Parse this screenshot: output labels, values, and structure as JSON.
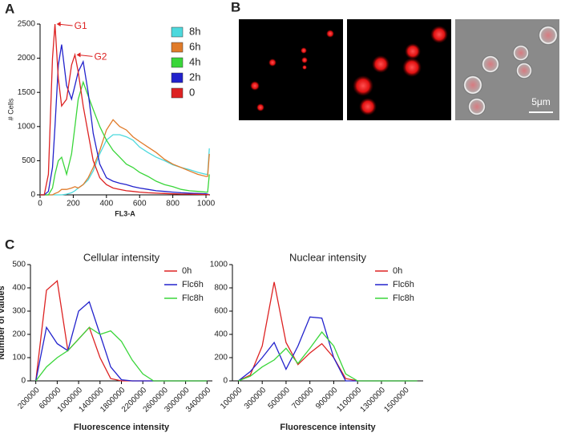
{
  "panel_labels": [
    "A",
    "B",
    "C"
  ],
  "scale_bar": "5μm",
  "chart_data": [
    {
      "type": "line",
      "xlabel": "FL3-A",
      "ylabel": "# Cells",
      "x": [
        0,
        25,
        50,
        75,
        90,
        110,
        130,
        160,
        190,
        210,
        230,
        260,
        290,
        320,
        360,
        400,
        440,
        480,
        520,
        560,
        600,
        650,
        700,
        750,
        800,
        850,
        900,
        950,
        1000,
        1010,
        1020
      ],
      "series": [
        {
          "name": "8h",
          "color": "#4dd9dd",
          "values": [
            0,
            0,
            0,
            0,
            0,
            0,
            0,
            10,
            30,
            60,
            100,
            150,
            220,
            350,
            600,
            800,
            880,
            880,
            850,
            800,
            700,
            620,
            550,
            500,
            440,
            400,
            370,
            330,
            300,
            300,
            680
          ]
        },
        {
          "name": "6h",
          "color": "#e07b2a",
          "values": [
            0,
            0,
            0,
            0,
            20,
            40,
            80,
            80,
            100,
            120,
            100,
            150,
            250,
            400,
            650,
            950,
            1100,
            1000,
            950,
            850,
            780,
            700,
            620,
            520,
            450,
            400,
            350,
            300,
            270,
            270,
            600
          ]
        },
        {
          "name": "4h",
          "color": "#3ad63a",
          "values": [
            0,
            0,
            0,
            100,
            300,
            500,
            550,
            300,
            600,
            1000,
            1400,
            1650,
            1450,
            1250,
            1000,
            800,
            650,
            550,
            450,
            400,
            330,
            270,
            200,
            150,
            120,
            80,
            60,
            50,
            40,
            40,
            300
          ]
        },
        {
          "name": "2h",
          "color": "#2222cc",
          "values": [
            0,
            0,
            50,
            400,
            1000,
            1900,
            2200,
            1600,
            1400,
            1600,
            1800,
            1950,
            1500,
            900,
            450,
            250,
            200,
            170,
            150,
            120,
            100,
            80,
            60,
            50,
            40,
            30,
            25,
            20,
            15,
            10,
            0
          ]
        },
        {
          "name": "0",
          "color": "#dd2222",
          "values": [
            0,
            0,
            300,
            2000,
            2500,
            1700,
            1300,
            1400,
            1900,
            2050,
            1800,
            1300,
            900,
            500,
            250,
            150,
            100,
            80,
            60,
            50,
            40,
            30,
            25,
            20,
            15,
            12,
            10,
            8,
            5,
            5,
            0
          ]
        }
      ],
      "annotations": [
        {
          "text": "G1",
          "x": 90,
          "y": 2500
        },
        {
          "text": "G2",
          "x": 210,
          "y": 2050
        }
      ],
      "xlim": [
        0,
        1024
      ],
      "xticks": [
        0,
        200,
        400,
        600,
        800,
        1000
      ],
      "ylim": [
        0,
        2500
      ],
      "yticks": [
        0,
        500,
        1000,
        1500,
        2000,
        2500
      ],
      "legend": "upper right"
    },
    {
      "type": "line",
      "title": "Cellular intensity",
      "xlabel": "Fluorescence intensity",
      "ylabel": "Number of values",
      "x": [
        200000,
        400000,
        600000,
        800000,
        1000000,
        1200000,
        1400000,
        1600000,
        1800000,
        2000000,
        2200000,
        2400000,
        2600000,
        2800000,
        3000000,
        3200000,
        3400000
      ],
      "series": [
        {
          "name": "0h",
          "color": "#dd2222",
          "values": [
            0,
            390,
            430,
            130,
            180,
            230,
            100,
            10,
            0,
            0,
            0,
            0,
            0,
            0,
            0,
            0,
            0
          ]
        },
        {
          "name": "Flc6h",
          "color": "#2222cc",
          "values": [
            0,
            230,
            160,
            130,
            300,
            340,
            200,
            60,
            5,
            0,
            0,
            0,
            0,
            0,
            0,
            0,
            0
          ]
        },
        {
          "name": "Flc8h",
          "color": "#3ad63a",
          "values": [
            0,
            60,
            100,
            130,
            180,
            230,
            200,
            215,
            170,
            90,
            30,
            0,
            0,
            0,
            0,
            0,
            0
          ]
        }
      ],
      "xlim": [
        100000,
        3500000
      ],
      "xticks": [
        200000,
        600000,
        1000000,
        1400000,
        1800000,
        2200000,
        2600000,
        3000000,
        3400000
      ],
      "ylim": [
        0,
        500
      ],
      "yticks": [
        0,
        100,
        200,
        300,
        400,
        500
      ],
      "legend": "upper right"
    },
    {
      "type": "line",
      "title": "Nuclear intensity",
      "xlabel": "Fluorescence intensity",
      "x": [
        100000,
        200000,
        300000,
        400000,
        500000,
        600000,
        700000,
        800000,
        900000,
        1000000,
        1100000,
        1200000,
        1300000,
        1400000,
        1500000,
        1600000
      ],
      "series": [
        {
          "name": "0h",
          "color": "#dd2222",
          "values": [
            0,
            50,
            300,
            850,
            330,
            140,
            240,
            320,
            200,
            20,
            0,
            0,
            0,
            0,
            0,
            0
          ]
        },
        {
          "name": "Flc6h",
          "color": "#2222cc",
          "values": [
            0,
            80,
            200,
            330,
            100,
            300,
            550,
            540,
            200,
            0,
            0,
            0,
            0,
            0,
            0,
            0
          ]
        },
        {
          "name": "Flc8h",
          "color": "#3ad63a",
          "values": [
            0,
            40,
            120,
            180,
            280,
            150,
            280,
            420,
            300,
            60,
            0,
            0,
            0,
            0,
            0,
            0
          ]
        }
      ],
      "xlim": [
        50000,
        1650000
      ],
      "xticks": [
        100000,
        300000,
        500000,
        700000,
        900000,
        1100000,
        1300000,
        1500000
      ],
      "ylim": [
        0,
        1000
      ],
      "yticks": [
        0,
        200,
        400,
        600,
        800,
        1000
      ],
      "legend": "upper right"
    }
  ]
}
